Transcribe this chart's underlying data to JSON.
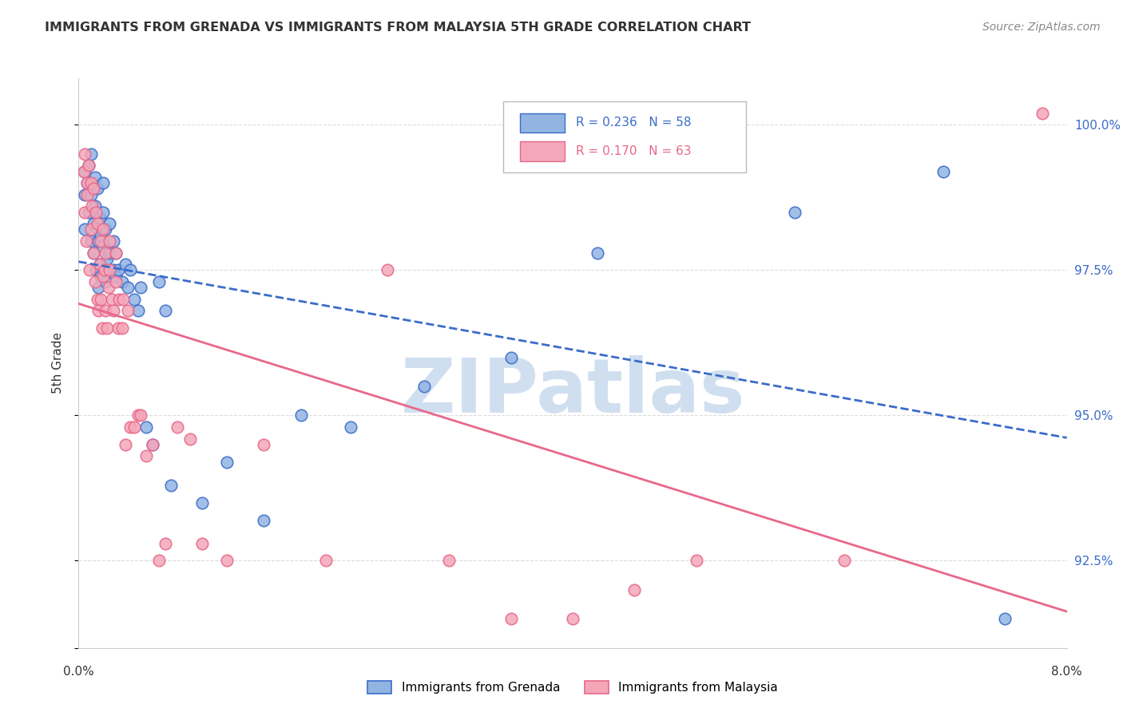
{
  "title": "IMMIGRANTS FROM GRENADA VS IMMIGRANTS FROM MALAYSIA 5TH GRADE CORRELATION CHART",
  "source": "Source: ZipAtlas.com",
  "ylabel": "5th Grade",
  "yticks": [
    91.0,
    92.5,
    95.0,
    97.5,
    100.0
  ],
  "ytick_labels": [
    "",
    "92.5%",
    "95.0%",
    "97.5%",
    "100.0%"
  ],
  "xmin": 0.0,
  "xmax": 8.0,
  "ymin": 91.0,
  "ymax": 100.8,
  "legend_blue_r": "R = 0.236",
  "legend_blue_n": "N = 58",
  "legend_pink_r": "R = 0.170",
  "legend_pink_n": "N = 63",
  "legend_blue_label": "Immigrants from Grenada",
  "legend_pink_label": "Immigrants from Malaysia",
  "blue_color": "#92b4e3",
  "pink_color": "#f4a7b9",
  "blue_line_color": "#3b6cc9",
  "pink_line_color": "#e8688a",
  "watermark": "ZIPatlas",
  "watermark_color": "#d0dff0",
  "blue_scatter_x": [
    0.05,
    0.05,
    0.05,
    0.07,
    0.08,
    0.08,
    0.1,
    0.1,
    0.1,
    0.12,
    0.12,
    0.13,
    0.13,
    0.14,
    0.15,
    0.15,
    0.16,
    0.16,
    0.17,
    0.17,
    0.18,
    0.18,
    0.2,
    0.2,
    0.2,
    0.22,
    0.22,
    0.23,
    0.25,
    0.25,
    0.28,
    0.28,
    0.3,
    0.3,
    0.32,
    0.35,
    0.38,
    0.4,
    0.42,
    0.45,
    0.48,
    0.5,
    0.55,
    0.6,
    0.65,
    0.7,
    0.75,
    1.0,
    1.2,
    1.5,
    1.8,
    2.2,
    2.8,
    3.5,
    4.2,
    5.8,
    7.0,
    7.5
  ],
  "blue_scatter_y": [
    98.8,
    99.2,
    98.2,
    99.0,
    98.5,
    99.3,
    98.0,
    98.8,
    99.5,
    97.8,
    98.3,
    98.6,
    99.1,
    97.5,
    98.2,
    98.9,
    97.2,
    98.0,
    97.6,
    98.4,
    97.4,
    98.1,
    97.9,
    98.5,
    99.0,
    97.3,
    98.2,
    97.7,
    97.8,
    98.3,
    97.5,
    98.0,
    97.4,
    97.8,
    97.5,
    97.3,
    97.6,
    97.2,
    97.5,
    97.0,
    96.8,
    97.2,
    94.8,
    94.5,
    97.3,
    96.8,
    93.8,
    93.5,
    94.2,
    93.2,
    95.0,
    94.8,
    95.5,
    96.0,
    97.8,
    98.5,
    99.2,
    91.5
  ],
  "pink_scatter_x": [
    0.04,
    0.05,
    0.05,
    0.06,
    0.07,
    0.07,
    0.08,
    0.09,
    0.1,
    0.1,
    0.11,
    0.12,
    0.12,
    0.13,
    0.14,
    0.15,
    0.15,
    0.16,
    0.17,
    0.18,
    0.18,
    0.19,
    0.2,
    0.2,
    0.21,
    0.22,
    0.22,
    0.23,
    0.24,
    0.25,
    0.25,
    0.27,
    0.28,
    0.3,
    0.3,
    0.32,
    0.33,
    0.35,
    0.36,
    0.38,
    0.4,
    0.42,
    0.45,
    0.48,
    0.5,
    0.55,
    0.6,
    0.65,
    0.7,
    0.8,
    0.9,
    1.0,
    1.2,
    1.5,
    2.0,
    2.5,
    3.0,
    3.5,
    4.0,
    4.5,
    5.0,
    6.2,
    7.8
  ],
  "pink_scatter_y": [
    99.2,
    98.5,
    99.5,
    98.0,
    99.0,
    98.8,
    99.3,
    97.5,
    98.2,
    99.0,
    98.6,
    97.8,
    98.9,
    97.3,
    98.5,
    97.0,
    98.3,
    96.8,
    97.6,
    97.0,
    98.0,
    96.5,
    97.4,
    98.2,
    97.5,
    96.8,
    97.8,
    96.5,
    97.2,
    97.5,
    98.0,
    97.0,
    96.8,
    97.3,
    97.8,
    96.5,
    97.0,
    96.5,
    97.0,
    94.5,
    96.8,
    94.8,
    94.8,
    95.0,
    95.0,
    94.3,
    94.5,
    92.5,
    92.8,
    94.8,
    94.6,
    92.8,
    92.5,
    94.5,
    92.5,
    97.5,
    92.5,
    91.5,
    91.5,
    92.0,
    92.5,
    92.5,
    100.2
  ]
}
